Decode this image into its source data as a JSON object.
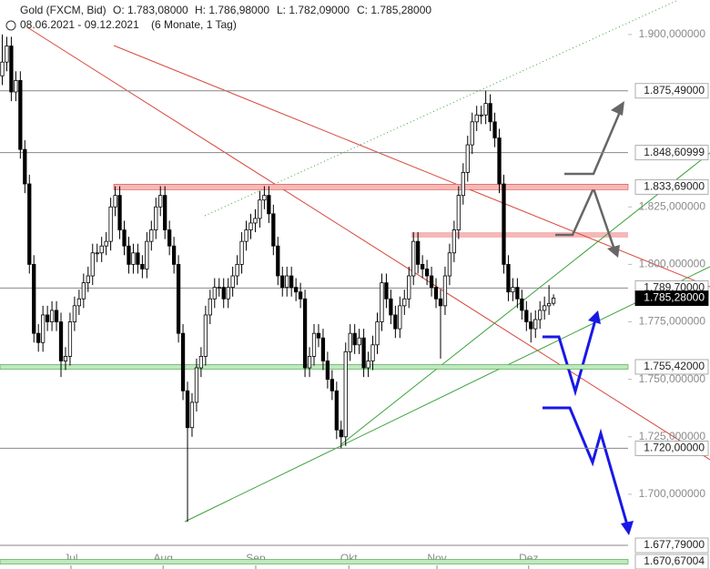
{
  "chart_data": {
    "type": "candlestick",
    "title": "Gold (FXCM, Bid)",
    "ohlc_labels": [
      "O: 1.783,08000",
      "H: 1.786,98000",
      "L: 1.782,09000",
      "C: 1.785,28000"
    ],
    "subtitle": "08.06.2021 - 09.12.2021",
    "period": "(6 Monate, 1 Tag)",
    "up_color": "#ffffff",
    "down_color": "#000000",
    "candles": [
      [
        1.882,
        1.9,
        1.878,
        1.888
      ],
      [
        1.888,
        1.899,
        1.884,
        1.895
      ],
      [
        1.895,
        1.899,
        1.871,
        1.875
      ],
      [
        1.875,
        1.884,
        1.871,
        1.88
      ],
      [
        1.88,
        1.884,
        1.846,
        1.85
      ],
      [
        1.85,
        1.854,
        1.831,
        1.835
      ],
      [
        1.835,
        1.839,
        1.796,
        1.8
      ],
      [
        1.8,
        1.804,
        1.766,
        1.77
      ],
      [
        1.77,
        1.774,
        1.762,
        1.766
      ],
      [
        1.766,
        1.782,
        1.762,
        1.778
      ],
      [
        1.778,
        1.782,
        1.771,
        1.775
      ],
      [
        1.775,
        1.784,
        1.771,
        1.78
      ],
      [
        1.78,
        1.784,
        1.771,
        1.775
      ],
      [
        1.775,
        1.779,
        1.751,
        1.758
      ],
      [
        1.758,
        1.764,
        1.754,
        1.76
      ],
      [
        1.76,
        1.779,
        1.756,
        1.775
      ],
      [
        1.775,
        1.786,
        1.771,
        1.782
      ],
      [
        1.782,
        1.789,
        1.778,
        1.785
      ],
      [
        1.785,
        1.796,
        1.781,
        1.792
      ],
      [
        1.792,
        1.799,
        1.788,
        1.795
      ],
      [
        1.795,
        1.809,
        1.791,
        1.805
      ],
      [
        1.805,
        1.809,
        1.801,
        1.805
      ],
      [
        1.805,
        1.812,
        1.801,
        1.808
      ],
      [
        1.808,
        1.814,
        1.804,
        1.81
      ],
      [
        1.81,
        1.829,
        1.806,
        1.825
      ],
      [
        1.825,
        1.834,
        1.821,
        1.83
      ],
      [
        1.83,
        1.834,
        1.811,
        1.815
      ],
      [
        1.815,
        1.819,
        1.804,
        1.808
      ],
      [
        1.808,
        1.812,
        1.796,
        1.8
      ],
      [
        1.8,
        1.809,
        1.796,
        1.805
      ],
      [
        1.805,
        1.809,
        1.796,
        1.8
      ],
      [
        1.8,
        1.804,
        1.794,
        1.798
      ],
      [
        1.798,
        1.814,
        1.794,
        1.81
      ],
      [
        1.81,
        1.819,
        1.806,
        1.815
      ],
      [
        1.815,
        1.829,
        1.811,
        1.825
      ],
      [
        1.825,
        1.834,
        1.821,
        1.83
      ],
      [
        1.83,
        1.834,
        1.811,
        1.815
      ],
      [
        1.815,
        1.819,
        1.804,
        1.808
      ],
      [
        1.808,
        1.812,
        1.796,
        1.8
      ],
      [
        1.8,
        1.804,
        1.766,
        1.77
      ],
      [
        1.77,
        1.774,
        1.741,
        1.745
      ],
      [
        1.745,
        1.749,
        1.688,
        1.729
      ],
      [
        1.729,
        1.744,
        1.725,
        1.74
      ],
      [
        1.74,
        1.759,
        1.736,
        1.755
      ],
      [
        1.755,
        1.764,
        1.751,
        1.76
      ],
      [
        1.76,
        1.782,
        1.756,
        1.778
      ],
      [
        1.778,
        1.789,
        1.774,
        1.785
      ],
      [
        1.785,
        1.794,
        1.781,
        1.79
      ],
      [
        1.79,
        1.794,
        1.786,
        1.79
      ],
      [
        1.79,
        1.794,
        1.781,
        1.785
      ],
      [
        1.785,
        1.794,
        1.781,
        1.79
      ],
      [
        1.79,
        1.799,
        1.786,
        1.795
      ],
      [
        1.795,
        1.804,
        1.791,
        1.8
      ],
      [
        1.8,
        1.814,
        1.796,
        1.81
      ],
      [
        1.81,
        1.819,
        1.806,
        1.815
      ],
      [
        1.815,
        1.822,
        1.811,
        1.818
      ],
      [
        1.818,
        1.824,
        1.814,
        1.82
      ],
      [
        1.82,
        1.832,
        1.816,
        1.828
      ],
      [
        1.828,
        1.834,
        1.824,
        1.83
      ],
      [
        1.83,
        1.834,
        1.818,
        1.822
      ],
      [
        1.822,
        1.826,
        1.804,
        1.808
      ],
      [
        1.808,
        1.812,
        1.791,
        1.795
      ],
      [
        1.795,
        1.799,
        1.786,
        1.79
      ],
      [
        1.79,
        1.799,
        1.786,
        1.795
      ],
      [
        1.795,
        1.799,
        1.786,
        1.79
      ],
      [
        1.79,
        1.794,
        1.784,
        1.788
      ],
      [
        1.788,
        1.792,
        1.781,
        1.785
      ],
      [
        1.785,
        1.789,
        1.751,
        1.755
      ],
      [
        1.755,
        1.764,
        1.751,
        1.76
      ],
      [
        1.76,
        1.774,
        1.756,
        1.77
      ],
      [
        1.77,
        1.774,
        1.764,
        1.768
      ],
      [
        1.768,
        1.772,
        1.754,
        1.758
      ],
      [
        1.758,
        1.762,
        1.746,
        1.75
      ],
      [
        1.75,
        1.754,
        1.741,
        1.745
      ],
      [
        1.745,
        1.749,
        1.724,
        1.728
      ],
      [
        1.728,
        1.732,
        1.72,
        1.725
      ],
      [
        1.725,
        1.766,
        1.721,
        1.762
      ],
      [
        1.762,
        1.774,
        1.758,
        1.77
      ],
      [
        1.77,
        1.774,
        1.761,
        1.765
      ],
      [
        1.765,
        1.772,
        1.761,
        1.768
      ],
      [
        1.768,
        1.772,
        1.751,
        1.755
      ],
      [
        1.755,
        1.762,
        1.751,
        1.758
      ],
      [
        1.758,
        1.769,
        1.754,
        1.765
      ],
      [
        1.765,
        1.779,
        1.761,
        1.775
      ],
      [
        1.775,
        1.796,
        1.771,
        1.792
      ],
      [
        1.792,
        1.796,
        1.781,
        1.785
      ],
      [
        1.785,
        1.789,
        1.774,
        1.778
      ],
      [
        1.778,
        1.782,
        1.768,
        1.772
      ],
      [
        1.772,
        1.786,
        1.768,
        1.782
      ],
      [
        1.782,
        1.789,
        1.778,
        1.785
      ],
      [
        1.785,
        1.799,
        1.781,
        1.795
      ],
      [
        1.795,
        1.814,
        1.791,
        1.81
      ],
      [
        1.81,
        1.814,
        1.796,
        1.8
      ],
      [
        1.8,
        1.804,
        1.794,
        1.798
      ],
      [
        1.798,
        1.802,
        1.791,
        1.795
      ],
      [
        1.795,
        1.799,
        1.786,
        1.79
      ],
      [
        1.79,
        1.794,
        1.781,
        1.785
      ],
      [
        1.785,
        1.789,
        1.759,
        1.782
      ],
      [
        1.782,
        1.799,
        1.778,
        1.795
      ],
      [
        1.795,
        1.809,
        1.791,
        1.805
      ],
      [
        1.805,
        1.819,
        1.801,
        1.815
      ],
      [
        1.815,
        1.834,
        1.811,
        1.83
      ],
      [
        1.83,
        1.844,
        1.826,
        1.84
      ],
      [
        1.84,
        1.856,
        1.836,
        1.852
      ],
      [
        1.852,
        1.866,
        1.848,
        1.862
      ],
      [
        1.862,
        1.869,
        1.858,
        1.865
      ],
      [
        1.865,
        1.869,
        1.861,
        1.865
      ],
      [
        1.865,
        1.8755,
        1.861,
        1.87
      ],
      [
        1.87,
        1.874,
        1.858,
        1.862
      ],
      [
        1.862,
        1.866,
        1.851,
        1.855
      ],
      [
        1.855,
        1.859,
        1.831,
        1.835
      ],
      [
        1.835,
        1.839,
        1.796,
        1.8
      ],
      [
        1.8,
        1.804,
        1.784,
        1.788
      ],
      [
        1.788,
        1.794,
        1.784,
        1.79
      ],
      [
        1.79,
        1.794,
        1.781,
        1.785
      ],
      [
        1.785,
        1.789,
        1.776,
        1.78
      ],
      [
        1.78,
        1.784,
        1.771,
        1.775
      ],
      [
        1.775,
        1.779,
        1.766,
        1.772
      ],
      [
        1.772,
        1.78,
        1.768,
        1.776
      ],
      [
        1.776,
        1.784,
        1.772,
        1.78
      ],
      [
        1.78,
        1.786,
        1.776,
        1.782
      ],
      [
        1.782,
        1.791,
        1.778,
        1.783
      ],
      [
        1.78308,
        1.78698,
        1.78209,
        1.78528
      ]
    ],
    "xlim": [
      -0.5,
      138.5
    ],
    "xticks": [
      {
        "value": 15.2,
        "label": "Jul"
      },
      {
        "value": 35.6,
        "label": "Aug"
      },
      {
        "value": 56.1,
        "label": "Sep"
      },
      {
        "value": 76.7,
        "label": "Okt"
      },
      {
        "value": 96.2,
        "label": "Nov"
      },
      {
        "value": 116.5,
        "label": "Dez"
      }
    ],
    "ylim": [
      1.6675,
      1.915
    ],
    "yticks": [
      {
        "value": 1.9,
        "label": "1.900,000000"
      },
      {
        "value": 1.825,
        "label": "1.825,000000"
      },
      {
        "value": 1.8,
        "label": "1.800,000000"
      },
      {
        "value": 1.775,
        "label": "1.775,000000"
      },
      {
        "value": 1.75,
        "label": "1.750,000000"
      },
      {
        "value": 1.725,
        "label": "1.725,000000"
      },
      {
        "value": 1.7,
        "label": "1.700,000000"
      }
    ],
    "levels": [
      {
        "value": 1.87549,
        "label": "1.875,49000",
        "kind": "line"
      },
      {
        "value": 1.84860999,
        "label": "1.848,60999",
        "kind": "line"
      },
      {
        "value": 1.83369,
        "label": "1.833,69000",
        "kind": "red-band"
      },
      {
        "value": 1.7897,
        "label": "1.789,70000",
        "kind": "line"
      },
      {
        "value": 1.75542,
        "label": "1.755,42000",
        "kind": "green-band"
      },
      {
        "value": 1.72,
        "label": "1.720,00000",
        "kind": "line"
      },
      {
        "value": 1.67779,
        "label": "1.677,79000",
        "kind": "line"
      },
      {
        "value": 1.67067004,
        "label": "1.670,67004",
        "kind": "green-band"
      },
      {
        "value": 1.78528,
        "label": "1.785,28000",
        "kind": "current"
      }
    ]
  }
}
